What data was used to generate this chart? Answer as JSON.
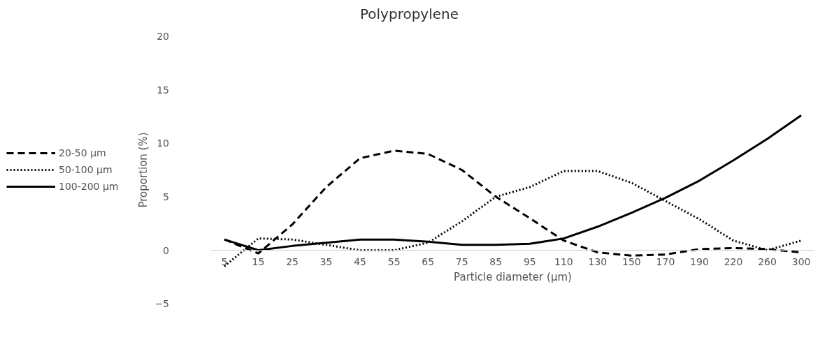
{
  "chart_data": {
    "type": "line",
    "title": "Polypropylene",
    "xlabel": "Particle diameter (µm)",
    "ylabel": "Proportion (%)",
    "categories": [
      "5",
      "15",
      "25",
      "35",
      "45",
      "55",
      "65",
      "75",
      "85",
      "95",
      "110",
      "130",
      "150",
      "170",
      "190",
      "220",
      "260",
      "300"
    ],
    "ylim": [
      -5,
      20
    ],
    "yticks": [
      -5,
      0,
      5,
      10,
      15,
      20
    ],
    "grid": false,
    "legend": "left",
    "marker": "none",
    "series": [
      {
        "name": "20-50 µm",
        "color": "#000000",
        "line_style": "dashed",
        "values": [
          1.0,
          -0.3,
          2.4,
          5.9,
          8.6,
          9.3,
          9.0,
          7.5,
          5.0,
          3.0,
          0.9,
          -0.2,
          -0.5,
          -0.4,
          0.1,
          0.2,
          0.1,
          -0.2
        ]
      },
      {
        "name": "50-100 µm",
        "color": "#000000",
        "line_style": "dotted",
        "values": [
          -1.5,
          1.1,
          1.0,
          0.5,
          0.0,
          0.0,
          0.7,
          2.7,
          5.0,
          5.9,
          7.4,
          7.4,
          6.3,
          4.6,
          2.9,
          0.9,
          0.0,
          0.9
        ]
      },
      {
        "name": "100-200 µm",
        "color": "#000000",
        "line_style": "solid",
        "values": [
          1.0,
          0.0,
          0.4,
          0.7,
          1.0,
          1.0,
          0.8,
          0.5,
          0.5,
          0.6,
          1.1,
          2.2,
          3.5,
          4.9,
          6.5,
          8.4,
          10.4,
          12.6
        ]
      }
    ]
  }
}
